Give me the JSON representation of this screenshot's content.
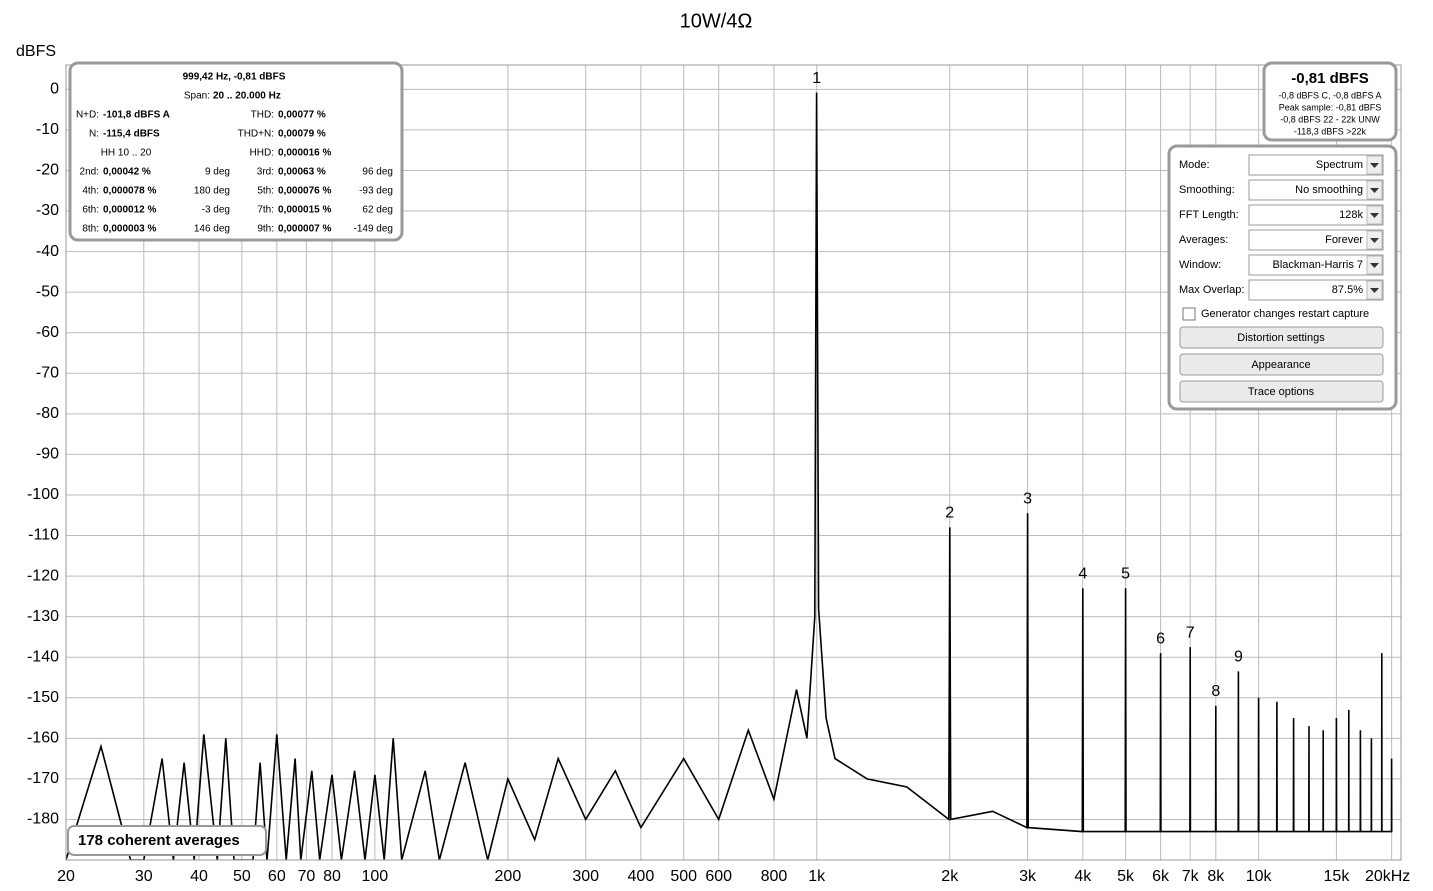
{
  "chart_data": {
    "type": "line",
    "title": "10W/4Ω",
    "ylabel": "dBFS",
    "xscale": "log",
    "xlim": [
      20,
      21000
    ],
    "ylim": [
      -190,
      6
    ],
    "grid": true,
    "xticks": [
      20,
      30,
      40,
      50,
      60,
      70,
      80,
      100,
      200,
      300,
      400,
      500,
      600,
      800,
      {
        "value": 1000,
        "label": "1k"
      },
      {
        "value": 2000,
        "label": "2k"
      },
      {
        "value": 3000,
        "label": "3k"
      },
      {
        "value": 4000,
        "label": "4k"
      },
      {
        "value": 5000,
        "label": "5k"
      },
      {
        "value": 6000,
        "label": "6k"
      },
      {
        "value": 7000,
        "label": "7k"
      },
      {
        "value": 8000,
        "label": "8k"
      },
      {
        "value": 10000,
        "label": "10k"
      },
      {
        "value": 15000,
        "label": "15k"
      },
      {
        "value": 20000,
        "label": "20kHz"
      }
    ],
    "yticks": [
      0,
      -10,
      -20,
      -30,
      -40,
      -50,
      -60,
      -70,
      -80,
      -90,
      -100,
      -110,
      -120,
      -130,
      -140,
      -150,
      -160,
      -170,
      -180
    ],
    "x": [
      20,
      24,
      28,
      30,
      33,
      35,
      37,
      39,
      41,
      44,
      46,
      48,
      53,
      55,
      57,
      60,
      63,
      66,
      68,
      72,
      75,
      80,
      84,
      90,
      95,
      100,
      105,
      110,
      115,
      130,
      140,
      160,
      180,
      200,
      230,
      260,
      300,
      350,
      400,
      500,
      600,
      700,
      800,
      900,
      950,
      990,
      999.4,
      1010,
      1050,
      1100,
      1300,
      1600,
      1990,
      2000,
      2010,
      2500,
      2990,
      3000,
      3010,
      3990,
      4000,
      4010,
      4990,
      5000,
      5010,
      5990,
      6000,
      6010,
      6990,
      7000,
      7010,
      7990,
      8000,
      8010,
      8990,
      9000,
      9010,
      9990,
      10000,
      10010,
      10990,
      11000,
      11010,
      11990,
      12000,
      12010,
      12990,
      13000,
      13010,
      13990,
      14000,
      14010,
      14990,
      15000,
      15010,
      15990,
      16000,
      16010,
      16990,
      17000,
      17010,
      17990,
      18000,
      18010,
      18990,
      19000,
      19010,
      19990,
      20000,
      20010
    ],
    "series": [
      {
        "name": "Spectrum",
        "color": "#000000",
        "values": [
          -190,
          -162,
          -190,
          -190,
          -165,
          -190,
          -166,
          -190,
          -159,
          -190,
          -160,
          -190,
          -190,
          -166,
          -190,
          -159,
          -190,
          -165,
          -190,
          -168,
          -190,
          -169,
          -190,
          -168,
          -190,
          -169,
          -190,
          -160,
          -190,
          -168,
          -190,
          -166,
          -190,
          -170,
          -185,
          -165,
          -180,
          -168,
          -182,
          -165,
          -180,
          -158,
          -175,
          -148,
          -160,
          -130,
          -0.81,
          -128,
          -155,
          -165,
          -170,
          -172,
          -180,
          -108,
          -180,
          -178,
          -182,
          -104.5,
          -182,
          -183,
          -123,
          -183,
          -183,
          -123,
          -183,
          -183,
          -139,
          -183,
          -183,
          -137.5,
          -183,
          -183,
          -152,
          -183,
          -183,
          -143.5,
          -183,
          -183,
          -150,
          -183,
          -183,
          -151,
          -183,
          -183,
          -155,
          -183,
          -183,
          -157,
          -183,
          -183,
          -158,
          -183,
          -183,
          -155,
          -183,
          -183,
          -153,
          -183,
          -183,
          -158,
          -183,
          -183,
          -160,
          -183,
          -183,
          -139,
          -183,
          -183,
          -165,
          -183
        ]
      }
    ],
    "annotations": [
      {
        "text": "1",
        "x": 1000,
        "y": -0.81
      },
      {
        "text": "2",
        "x": 2000,
        "y": -108
      },
      {
        "text": "3",
        "x": 3000,
        "y": -104.5
      },
      {
        "text": "4",
        "x": 4000,
        "y": -123
      },
      {
        "text": "5",
        "x": 5000,
        "y": -123
      },
      {
        "text": "6",
        "x": 6000,
        "y": -139
      },
      {
        "text": "7",
        "x": 7000,
        "y": -137.5
      },
      {
        "text": "8",
        "x": 8000,
        "y": -152
      },
      {
        "text": "9",
        "x": 9000,
        "y": -143.5
      }
    ]
  },
  "info_panel": {
    "header": "999,42 Hz, -0,81 dBFS",
    "span": {
      "label": "Span:",
      "value": "20 .. 20.000 Hz"
    },
    "pairs": [
      [
        {
          "label": "N+D:",
          "value": "-101,8 dBFS A"
        },
        {
          "label": "THD:",
          "value": "0,00077 %"
        }
      ],
      [
        {
          "label": "N:",
          "value": "-115,4 dBFS"
        },
        {
          "label": "THD+N:",
          "value": "0,00079 %"
        }
      ]
    ],
    "hh": "HH 10 .. 20",
    "hhd": {
      "label": "HHD:",
      "value": "0,000016 %"
    },
    "harmonics": [
      {
        "label": "2nd:",
        "value": "0,00042 %",
        "phase": "9 deg"
      },
      {
        "label": "3rd:",
        "value": "0,00063 %",
        "phase": "96 deg"
      },
      {
        "label": "4th:",
        "value": "0,000078 %",
        "phase": "180 deg"
      },
      {
        "label": "5th:",
        "value": "0,000076 %",
        "phase": "-93 deg"
      },
      {
        "label": "6th:",
        "value": "0,000012 %",
        "phase": "-3 deg"
      },
      {
        "label": "7th:",
        "value": "0,000015 %",
        "phase": "62 deg"
      },
      {
        "label": "8th:",
        "value": "0,000003 %",
        "phase": "146 deg"
      },
      {
        "label": "9th:",
        "value": "0,000007 %",
        "phase": "-149 deg"
      }
    ]
  },
  "level_panel": {
    "main": "-0,81 dBFS",
    "lines": [
      "-0,8 dBFS C, -0,8 dBFS A",
      "Peak sample: -0,81 dBFS",
      "-0,8 dBFS 22 - 22k UNW",
      "-118,3 dBFS >22k"
    ]
  },
  "controls": {
    "fields": [
      {
        "label": "Mode:",
        "value": "Spectrum"
      },
      {
        "label": "Smoothing:",
        "value": "No  smoothing"
      },
      {
        "label": "FFT Length:",
        "value": "128k"
      },
      {
        "label": "Averages:",
        "value": "Forever"
      },
      {
        "label": "Window:",
        "value": "Blackman-Harris 7"
      },
      {
        "label": "Max Overlap:",
        "value": "87.5%"
      }
    ],
    "checkbox": "Generator changes restart capture",
    "buttons": [
      "Distortion settings",
      "Appearance",
      "Trace options"
    ]
  },
  "status": "178 coherent averages"
}
